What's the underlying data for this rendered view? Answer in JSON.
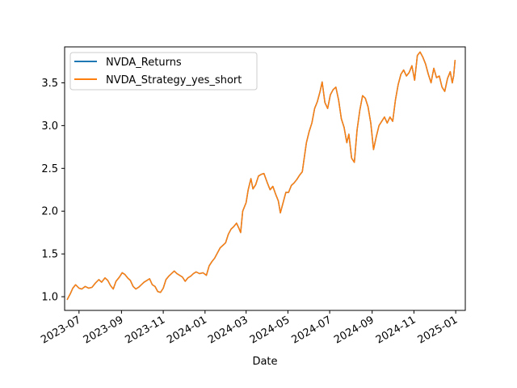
{
  "chart_data": {
    "type": "line",
    "title": "",
    "xlabel": "Date",
    "ylabel": "",
    "x_type": "date",
    "xlim": [
      "2023-06-10",
      "2025-01-15"
    ],
    "ylim": [
      0.84,
      3.92
    ],
    "grid": false,
    "legend_position": "top-left",
    "x_ticks": [
      "2023-07-01",
      "2023-09-01",
      "2023-11-01",
      "2024-01-01",
      "2024-03-01",
      "2024-05-01",
      "2024-07-01",
      "2024-09-01",
      "2024-11-01",
      "2025-01-01"
    ],
    "x_tick_labels": [
      "2023-07",
      "2023-09",
      "2023-11",
      "2024-01",
      "2024-03",
      "2024-05",
      "2024-07",
      "2024-09",
      "2024-11",
      "2025-01"
    ],
    "y_ticks": [
      1.0,
      1.5,
      2.0,
      2.5,
      3.0,
      3.5
    ],
    "y_tick_labels": [
      "1.0",
      "1.5",
      "2.0",
      "2.5",
      "3.0",
      "3.5"
    ],
    "series": [
      {
        "name": "NVDA_Returns",
        "color": "#1f77b4",
        "points": [
          [
            "2023-06-14",
            0.97
          ],
          [
            "2023-06-18",
            1.03
          ],
          [
            "2023-06-22",
            1.1
          ],
          [
            "2023-06-26",
            1.14
          ],
          [
            "2023-07-01",
            1.1
          ],
          [
            "2023-07-05",
            1.09
          ],
          [
            "2023-07-10",
            1.12
          ],
          [
            "2023-07-15",
            1.1
          ],
          [
            "2023-07-20",
            1.11
          ],
          [
            "2023-07-25",
            1.16
          ],
          [
            "2023-07-30",
            1.2
          ],
          [
            "2023-08-03",
            1.17
          ],
          [
            "2023-08-08",
            1.22
          ],
          [
            "2023-08-12",
            1.19
          ],
          [
            "2023-08-16",
            1.13
          ],
          [
            "2023-08-20",
            1.09
          ],
          [
            "2023-08-24",
            1.18
          ],
          [
            "2023-08-29",
            1.23
          ],
          [
            "2023-09-02",
            1.28
          ],
          [
            "2023-09-06",
            1.26
          ],
          [
            "2023-09-10",
            1.22
          ],
          [
            "2023-09-14",
            1.19
          ],
          [
            "2023-09-18",
            1.12
          ],
          [
            "2023-09-22",
            1.09
          ],
          [
            "2023-09-26",
            1.11
          ],
          [
            "2023-09-30",
            1.14
          ],
          [
            "2023-10-04",
            1.17
          ],
          [
            "2023-10-08",
            1.19
          ],
          [
            "2023-10-12",
            1.21
          ],
          [
            "2023-10-16",
            1.14
          ],
          [
            "2023-10-20",
            1.12
          ],
          [
            "2023-10-24",
            1.06
          ],
          [
            "2023-10-28",
            1.05
          ],
          [
            "2023-11-01",
            1.1
          ],
          [
            "2023-11-05",
            1.2
          ],
          [
            "2023-11-09",
            1.24
          ],
          [
            "2023-11-13",
            1.27
          ],
          [
            "2023-11-17",
            1.3
          ],
          [
            "2023-11-21",
            1.27
          ],
          [
            "2023-11-25",
            1.25
          ],
          [
            "2023-11-29",
            1.23
          ],
          [
            "2023-12-03",
            1.18
          ],
          [
            "2023-12-07",
            1.22
          ],
          [
            "2023-12-11",
            1.24
          ],
          [
            "2023-12-15",
            1.27
          ],
          [
            "2023-12-19",
            1.29
          ],
          [
            "2023-12-24",
            1.27
          ],
          [
            "2023-12-29",
            1.28
          ],
          [
            "2024-01-03",
            1.25
          ],
          [
            "2024-01-07",
            1.36
          ],
          [
            "2024-01-11",
            1.41
          ],
          [
            "2024-01-15",
            1.45
          ],
          [
            "2024-01-19",
            1.51
          ],
          [
            "2024-01-23",
            1.57
          ],
          [
            "2024-01-27",
            1.6
          ],
          [
            "2024-01-31",
            1.63
          ],
          [
            "2024-02-04",
            1.73
          ],
          [
            "2024-02-08",
            1.79
          ],
          [
            "2024-02-12",
            1.82
          ],
          [
            "2024-02-16",
            1.86
          ],
          [
            "2024-02-20",
            1.79
          ],
          [
            "2024-02-22",
            1.75
          ],
          [
            "2024-02-25",
            2.0
          ],
          [
            "2024-03-01",
            2.1
          ],
          [
            "2024-03-04",
            2.25
          ],
          [
            "2024-03-08",
            2.38
          ],
          [
            "2024-03-11",
            2.26
          ],
          [
            "2024-03-15",
            2.31
          ],
          [
            "2024-03-19",
            2.41
          ],
          [
            "2024-03-23",
            2.43
          ],
          [
            "2024-03-27",
            2.44
          ],
          [
            "2024-04-01",
            2.33
          ],
          [
            "2024-04-05",
            2.25
          ],
          [
            "2024-04-09",
            2.29
          ],
          [
            "2024-04-13",
            2.2
          ],
          [
            "2024-04-17",
            2.12
          ],
          [
            "2024-04-20",
            1.98
          ],
          [
            "2024-04-24",
            2.1
          ],
          [
            "2024-04-28",
            2.22
          ],
          [
            "2024-05-02",
            2.22
          ],
          [
            "2024-05-06",
            2.3
          ],
          [
            "2024-05-10",
            2.33
          ],
          [
            "2024-05-14",
            2.37
          ],
          [
            "2024-05-18",
            2.42
          ],
          [
            "2024-05-22",
            2.46
          ],
          [
            "2024-05-25",
            2.63
          ],
          [
            "2024-05-28",
            2.8
          ],
          [
            "2024-06-01",
            2.93
          ],
          [
            "2024-06-05",
            3.03
          ],
          [
            "2024-06-09",
            3.2
          ],
          [
            "2024-06-13",
            3.28
          ],
          [
            "2024-06-17",
            3.4
          ],
          [
            "2024-06-20",
            3.51
          ],
          [
            "2024-06-24",
            3.27
          ],
          [
            "2024-06-28",
            3.2
          ],
          [
            "2024-07-02",
            3.36
          ],
          [
            "2024-07-06",
            3.42
          ],
          [
            "2024-07-10",
            3.45
          ],
          [
            "2024-07-14",
            3.3
          ],
          [
            "2024-07-18",
            3.08
          ],
          [
            "2024-07-22",
            2.98
          ],
          [
            "2024-07-26",
            2.8
          ],
          [
            "2024-07-29",
            2.9
          ],
          [
            "2024-08-02",
            2.62
          ],
          [
            "2024-08-06",
            2.57
          ],
          [
            "2024-08-10",
            2.95
          ],
          [
            "2024-08-14",
            3.18
          ],
          [
            "2024-08-18",
            3.35
          ],
          [
            "2024-08-22",
            3.32
          ],
          [
            "2024-08-26",
            3.22
          ],
          [
            "2024-08-30",
            3.03
          ],
          [
            "2024-09-03",
            2.72
          ],
          [
            "2024-09-07",
            2.87
          ],
          [
            "2024-09-11",
            3.0
          ],
          [
            "2024-09-15",
            3.05
          ],
          [
            "2024-09-19",
            3.1
          ],
          [
            "2024-09-23",
            3.03
          ],
          [
            "2024-09-27",
            3.1
          ],
          [
            "2024-10-01",
            3.05
          ],
          [
            "2024-10-05",
            3.3
          ],
          [
            "2024-10-09",
            3.48
          ],
          [
            "2024-10-13",
            3.6
          ],
          [
            "2024-10-17",
            3.65
          ],
          [
            "2024-10-21",
            3.58
          ],
          [
            "2024-10-25",
            3.62
          ],
          [
            "2024-10-29",
            3.7
          ],
          [
            "2024-11-02",
            3.53
          ],
          [
            "2024-11-06",
            3.82
          ],
          [
            "2024-11-10",
            3.86
          ],
          [
            "2024-11-14",
            3.8
          ],
          [
            "2024-11-18",
            3.72
          ],
          [
            "2024-11-22",
            3.6
          ],
          [
            "2024-11-26",
            3.5
          ],
          [
            "2024-11-30",
            3.67
          ],
          [
            "2024-12-04",
            3.56
          ],
          [
            "2024-12-08",
            3.58
          ],
          [
            "2024-12-12",
            3.45
          ],
          [
            "2024-12-16",
            3.4
          ],
          [
            "2024-12-20",
            3.55
          ],
          [
            "2024-12-24",
            3.63
          ],
          [
            "2024-12-27",
            3.5
          ],
          [
            "2024-12-29",
            3.58
          ],
          [
            "2024-12-31",
            3.76
          ]
        ]
      },
      {
        "name": "NVDA_Strategy_yes_short",
        "color": "#ff7f0e",
        "same_values_as": "NVDA_Returns"
      }
    ]
  }
}
